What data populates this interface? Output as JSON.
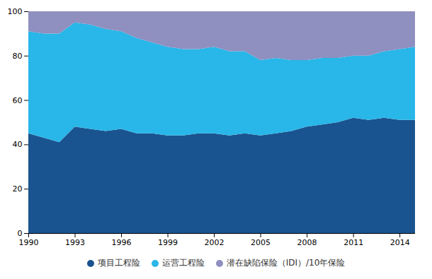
{
  "chart_data": {
    "type": "area",
    "stacked": true,
    "x": [
      1990,
      1991,
      1992,
      1993,
      1994,
      1995,
      1996,
      1997,
      1998,
      1999,
      2000,
      2001,
      2002,
      2003,
      2004,
      2005,
      2006,
      2007,
      2008,
      2009,
      2010,
      2011,
      2012,
      2013,
      2014,
      2015
    ],
    "series": [
      {
        "name": "项目工程险",
        "color": "#1a5490",
        "values": [
          45,
          43,
          41,
          48,
          47,
          46,
          47,
          45,
          45,
          44,
          44,
          45,
          45,
          44,
          45,
          44,
          45,
          46,
          48,
          49,
          50,
          52,
          51,
          52,
          51,
          51
        ]
      },
      {
        "name": "运营工程险",
        "color": "#29b6e8",
        "values": [
          46,
          47,
          49,
          47,
          47,
          46,
          44,
          43,
          41,
          40,
          39,
          38,
          39,
          38,
          37,
          34,
          34,
          32,
          30,
          30,
          29,
          28,
          29,
          30,
          32,
          33
        ]
      },
      {
        "name": "潜在缺陷保险（IDI）/10年保险",
        "color": "#8f8fc0",
        "values": [
          9,
          10,
          10,
          5,
          6,
          8,
          9,
          12,
          14,
          16,
          17,
          17,
          16,
          18,
          18,
          22,
          21,
          22,
          22,
          21,
          21,
          20,
          20,
          18,
          17,
          16
        ]
      }
    ],
    "xlim": [
      1990,
      2015
    ],
    "xticks": [
      1990,
      1993,
      1996,
      1999,
      2002,
      2005,
      2008,
      2011,
      2014
    ],
    "ylim": [
      0,
      100
    ],
    "yticks": [
      0,
      20,
      40,
      60,
      80,
      100
    ],
    "grid": true,
    "legend": "bottom"
  }
}
